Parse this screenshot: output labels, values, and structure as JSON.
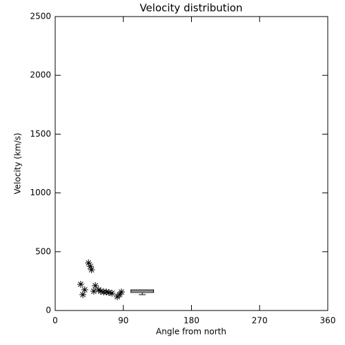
{
  "chart_data": {
    "type": "scatter",
    "title": "Velocity distribution",
    "x_label": "Angle from north",
    "y_label": "Velocity (km/s)",
    "x": [
      33.7,
      36.5,
      39,
      44,
      46.5,
      48,
      51,
      53,
      57.4,
      60,
      64,
      67.5,
      71,
      75,
      82,
      85,
      87.5
    ],
    "y": [
      223,
      135,
      176,
      405,
      375,
      346,
      164,
      211,
      176,
      164,
      158,
      158,
      153,
      147,
      117,
      135,
      158
    ],
    "marker": "asterisk",
    "color": "#000000",
    "box": {
      "x": [
        100,
        130
      ],
      "low": 135,
      "q1": 153,
      "median": 165,
      "q3": 176
    },
    "xlim": [
      0,
      360
    ],
    "xticks": [
      0,
      90,
      180,
      270,
      360
    ],
    "ylim": [
      0,
      2500
    ],
    "yticks": [
      0,
      500,
      1000,
      1500,
      2000,
      2500
    ]
  }
}
